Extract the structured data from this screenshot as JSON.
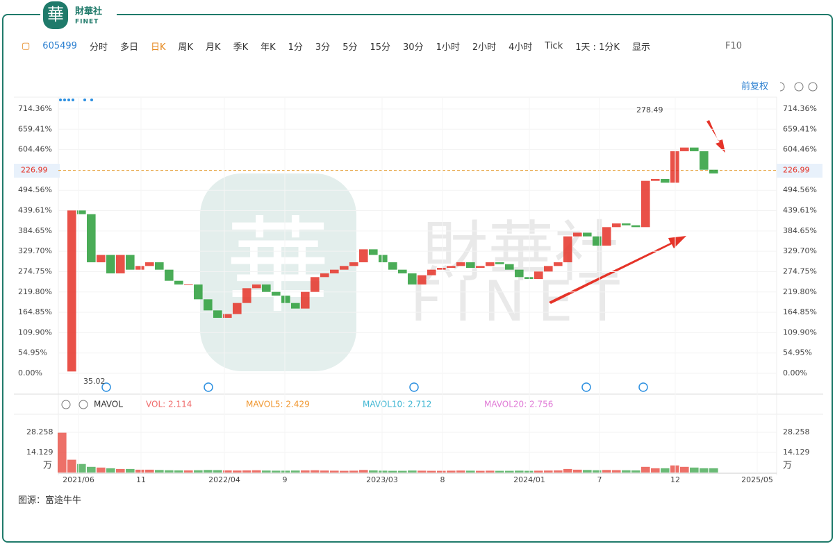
{
  "logo": {
    "mark": "華",
    "name": "財華社",
    "sub": "FINET"
  },
  "toolbar": {
    "code": "605499",
    "items": [
      "分时",
      "多日",
      "日K",
      "周K",
      "月K",
      "季K",
      "年K",
      "1分",
      "3分",
      "5分",
      "15分",
      "30分",
      "1小时",
      "2小时",
      "4小时",
      "Tick",
      "1天 : 1分K",
      "显示"
    ],
    "active": "日K",
    "f10": "F10"
  },
  "adjust": "前复权",
  "watermark": {
    "name": "財華社",
    "sub": "FINET"
  },
  "chart_data": {
    "type": "candlestick",
    "ylim": [
      -50.6,
      746.2
    ],
    "yticks": [
      {
        "value": 0,
        "label": "0.00%"
      },
      {
        "value": 54.95,
        "label": "54.95%"
      },
      {
        "value": 109.9,
        "label": "109.90%"
      },
      {
        "value": 164.85,
        "label": "164.85%"
      },
      {
        "value": 219.8,
        "label": "219.80%"
      },
      {
        "value": 274.75,
        "label": "274.75%"
      },
      {
        "value": 329.7,
        "label": "329.70%"
      },
      {
        "value": 384.65,
        "label": "384.65%"
      },
      {
        "value": 439.61,
        "label": "439.61%"
      },
      {
        "value": 494.56,
        "label": "494.56%"
      },
      {
        "value": 604.46,
        "label": "604.46%"
      },
      {
        "value": 659.41,
        "label": "659.41%"
      },
      {
        "value": 714.36,
        "label": "714.36%"
      }
    ],
    "base_price": 35.02,
    "high_price": 278.49,
    "last_price": 226.99,
    "values": [
      5,
      440,
      430,
      300,
      320,
      270,
      320,
      280,
      290,
      300,
      280,
      250,
      240,
      240,
      200,
      170,
      150,
      160,
      190,
      230,
      240,
      220,
      210,
      190,
      175,
      220,
      260,
      270,
      280,
      290,
      300,
      335,
      320,
      300,
      280,
      270,
      240,
      265,
      280,
      285,
      290,
      300,
      285,
      290,
      300,
      295,
      280,
      260,
      255,
      275,
      290,
      300,
      370,
      380,
      370,
      345,
      395,
      405,
      400,
      395,
      520,
      525,
      515,
      600,
      610,
      600,
      550,
      540
    ],
    "legend": [
      "MAVOL",
      "VOL: 2.114",
      "MAVOL5: 2.429",
      "MAVOL10: 2.712",
      "MAVOL20: 2.756"
    ],
    "volume": {
      "ylim": [
        0,
        40.5
      ],
      "yticks": [
        14.129,
        28.258
      ],
      "unit": "万",
      "values": [
        28,
        9,
        6,
        4,
        3.5,
        3,
        2.5,
        2.5,
        2,
        2,
        1.8,
        1.6,
        1.5,
        1.5,
        1.6,
        1.8,
        1.7,
        1.5,
        1.4,
        1.5,
        1.6,
        1.4,
        1.3,
        1.3,
        1.4,
        1.5,
        1.6,
        1.4,
        1.3,
        1.2,
        1.3,
        1.8,
        1.5,
        1.3,
        1.2,
        1.2,
        1.4,
        1.3,
        1.2,
        1.2,
        1.3,
        1.4,
        1.3,
        1.2,
        1.3,
        1.2,
        1.2,
        1.3,
        1.2,
        1.3,
        1.4,
        1.5,
        2.5,
        2,
        1.8,
        1.6,
        1.8,
        1.7,
        1.6,
        1.5,
        4,
        3,
        3,
        5,
        4,
        3.5,
        3,
        3
      ]
    },
    "x_labels": [
      "2021/06",
      "11",
      "2022/04",
      "9",
      "2023/03",
      "8",
      "2024/01",
      "7",
      "12",
      "2025/05"
    ]
  },
  "source": "图源：富途牛牛"
}
